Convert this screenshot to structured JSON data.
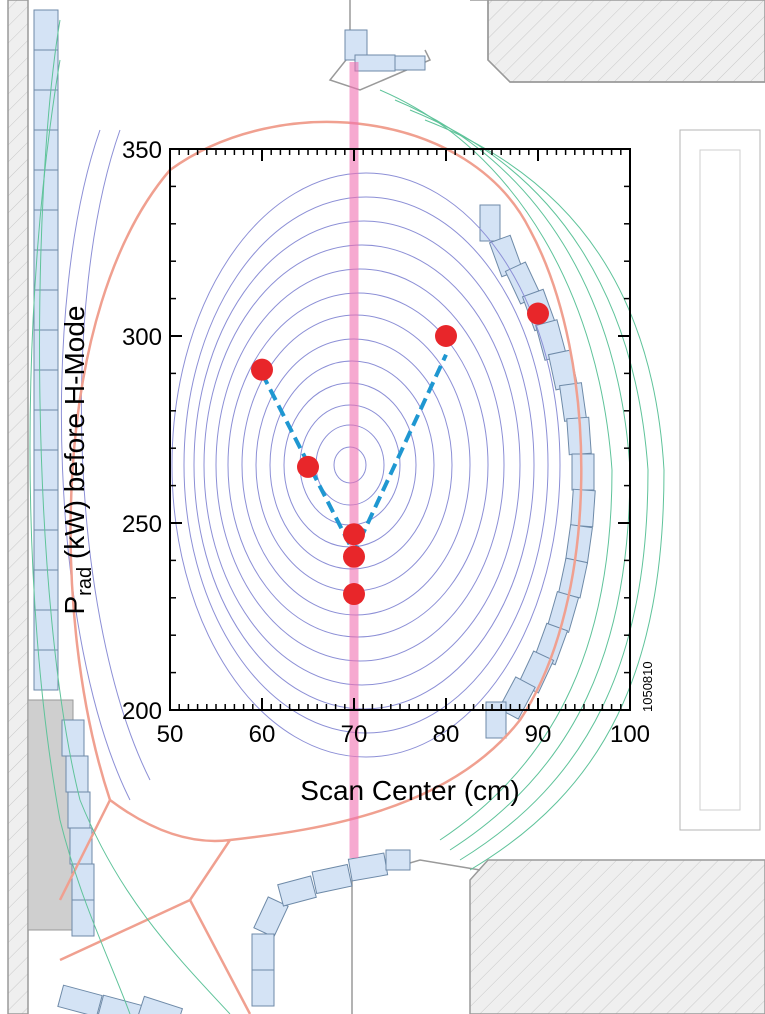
{
  "figure_id": "1050810",
  "colors": {
    "points": "#e8262a",
    "fit_line": "#1f97d1",
    "beam": "#f06fb0",
    "separatrix": "#f0a090",
    "flux_inner": "#8c8fd6",
    "flux_outer": "#5fc39a",
    "tile_fill": "#d4e3f5",
    "tile_edge": "#6e8aa8",
    "wall_fill": "#ececec",
    "wall_edge": "#9a9a9a"
  },
  "chart_data": {
    "type": "scatter",
    "title": "",
    "xlabel": "Scan Center (cm)",
    "ylabel_main": "P",
    "ylabel_sub": "rad",
    "ylabel_rest": " (kW) before H-Mode",
    "xlim": [
      50,
      100
    ],
    "ylim": [
      200,
      350
    ],
    "x_ticks": [
      "50",
      "60",
      "70",
      "80",
      "90",
      "100"
    ],
    "y_ticks": [
      "200",
      "250",
      "300",
      "350"
    ],
    "grid": false,
    "legend": "none",
    "series": [
      {
        "points": [
          {
            "x": 60,
            "y": 291
          },
          {
            "x": 65,
            "y": 265
          },
          {
            "x": 70,
            "y": 247
          },
          {
            "x": 70,
            "y": 241
          },
          {
            "x": 70,
            "y": 231
          },
          {
            "x": 80,
            "y": 300
          },
          {
            "x": 90,
            "y": 306
          }
        ]
      }
    ],
    "fit_line": {
      "x": [
        60,
        70,
        80
      ],
      "y": [
        290,
        242,
        295
      ]
    },
    "beam_x": 70
  }
}
